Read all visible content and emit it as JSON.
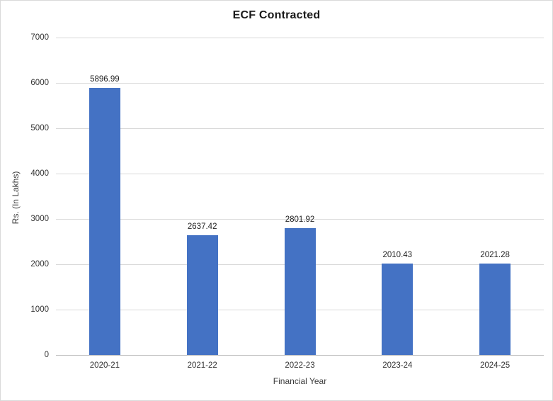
{
  "chart_data": {
    "type": "bar",
    "title": "ECF Contracted",
    "xlabel": "Financial Year",
    "ylabel": "Rs. (In Lakhs)",
    "categories": [
      "2020-21",
      "2021-22",
      "2022-23",
      "2023-24",
      "2024-25"
    ],
    "values": [
      5896.99,
      2637.42,
      2801.92,
      2010.43,
      2021.28
    ],
    "data_labels": [
      "5896.99",
      "2637.42",
      "2801.92",
      "2010.43",
      "2021.28"
    ],
    "ylim": [
      0,
      7000
    ],
    "yticks": [
      0,
      1000,
      2000,
      3000,
      4000,
      5000,
      6000,
      7000
    ],
    "grid": true,
    "legend": false,
    "colors": {
      "bar": "#4472c4",
      "gridline": "#d9d9d9",
      "axis_line": "#bfbfbf",
      "tick_text": "#333333",
      "title_text": "#1a1a1a"
    }
  }
}
